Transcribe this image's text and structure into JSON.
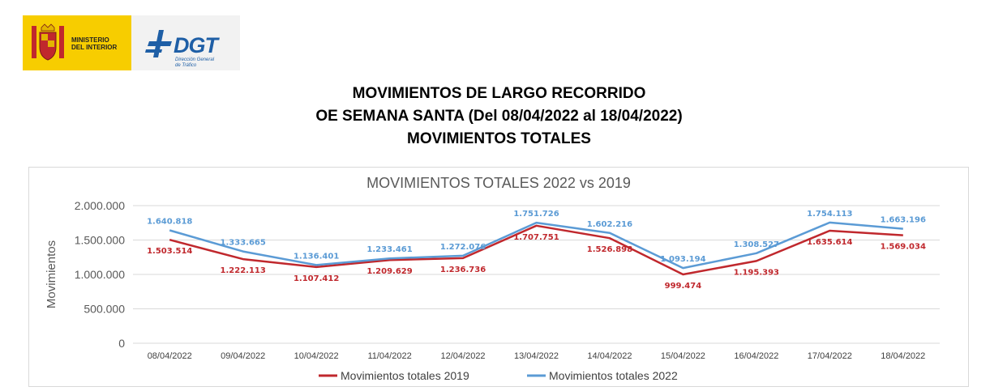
{
  "logos": {
    "ministry_line1": "MINISTERIO",
    "ministry_line2": "DEL INTERIOR",
    "dgt_name": "DGT",
    "dgt_sub1": "Dirección General",
    "dgt_sub2": "de Tráfico"
  },
  "page": {
    "title_line1": "MOVIMIENTOS DE LARGO RECORRIDO",
    "title_line2": "OE SEMANA SANTA (Del 08/04/2022 al 18/04/2022)",
    "title_line3": "MOVIMIENTOS TOTALES"
  },
  "colors": {
    "series_2019": "#c0282d",
    "series_2022": "#5b9bd5",
    "grid": "#d9d9d9"
  },
  "chart_data": {
    "type": "line",
    "title": "MOVIMIENTOS TOTALES 2022 vs 2019",
    "xlabel": "",
    "ylabel": "Movimientos",
    "ylim": [
      0,
      2000000
    ],
    "yticks": [
      0,
      500000,
      1000000,
      1500000,
      2000000
    ],
    "ytick_labels": [
      "0",
      "500.000",
      "1.000.000",
      "1.500.000",
      "2.000.000"
    ],
    "grid": true,
    "legend_position": "bottom",
    "categories": [
      "08/04/2022",
      "09/04/2022",
      "10/04/2022",
      "11/04/2022",
      "12/04/2022",
      "13/04/2022",
      "14/04/2022",
      "15/04/2022",
      "16/04/2022",
      "17/04/2022",
      "18/04/2022"
    ],
    "series": [
      {
        "name": "Movimientos totales 2019",
        "color": "#c0282d",
        "values": [
          1503514,
          1222113,
          1107412,
          1209629,
          1236736,
          1707751,
          1526898,
          999474,
          1195393,
          1635614,
          1569034
        ],
        "labels": [
          "1.503.514",
          "1.222.113",
          "1.107.412",
          "1.209.629",
          "1.236.736",
          "1.707.751",
          "1.526.898",
          "999.474",
          "1.195.393",
          "1.635.614",
          "1.569.034"
        ]
      },
      {
        "name": "Movimientos totales 2022",
        "color": "#5b9bd5",
        "values": [
          1640818,
          1333665,
          1136401,
          1233461,
          1272076,
          1751726,
          1602216,
          1093194,
          1308527,
          1754113,
          1663196
        ],
        "labels": [
          "1.640.818",
          "1.333.665",
          "1.136.401",
          "1.233.461",
          "1.272.076",
          "1.751.726",
          "1.602.216",
          "1.093.194",
          "1.308.527",
          "1.754.113",
          "1.663.196"
        ]
      }
    ]
  }
}
